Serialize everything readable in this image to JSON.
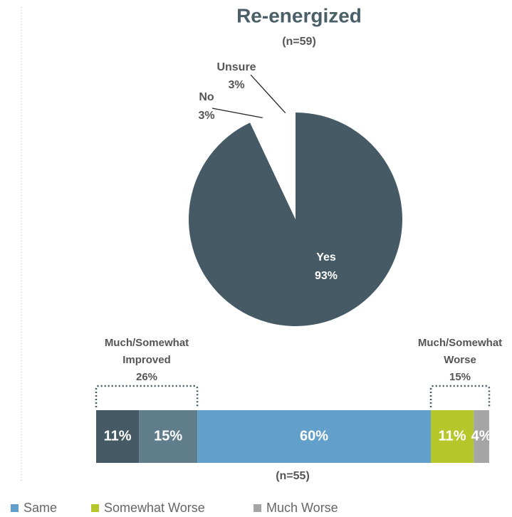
{
  "chart_data": [
    {
      "type": "pie",
      "title": "Re-energized",
      "subtitle": "(n=59)",
      "categories": [
        "Yes",
        "No",
        "Unsure"
      ],
      "values": [
        93,
        3,
        3
      ],
      "value_labels": [
        "93%",
        "3%",
        "3%"
      ],
      "colors": [
        "#455a64",
        "#ffffff",
        "#ffffff"
      ]
    },
    {
      "type": "bar",
      "orientation": "horizontal",
      "stacked": true,
      "subtitle": "(n=55)",
      "series": [
        {
          "color": "#455a64",
          "values": [
            11
          ],
          "value_labels": [
            "11%"
          ]
        },
        {
          "color": "#5f7d8b",
          "values": [
            15
          ],
          "value_labels": [
            "15%"
          ]
        },
        {
          "name": "Same",
          "color": "#62a0cb",
          "values": [
            60
          ],
          "value_labels": [
            "60%"
          ]
        },
        {
          "name": "Somewhat Worse",
          "color": "#b6c72c",
          "values": [
            11
          ],
          "value_labels": [
            "11%"
          ]
        },
        {
          "name": "Much Worse",
          "color": "#a5a5a5",
          "values": [
            4
          ],
          "value_labels": [
            "4%"
          ]
        }
      ],
      "annotations": [
        {
          "lines": [
            "Much/Somewhat",
            "Improved",
            "26%"
          ]
        },
        {
          "lines": [
            "Much/Somewhat",
            "Worse",
            "15%"
          ]
        }
      ]
    }
  ]
}
